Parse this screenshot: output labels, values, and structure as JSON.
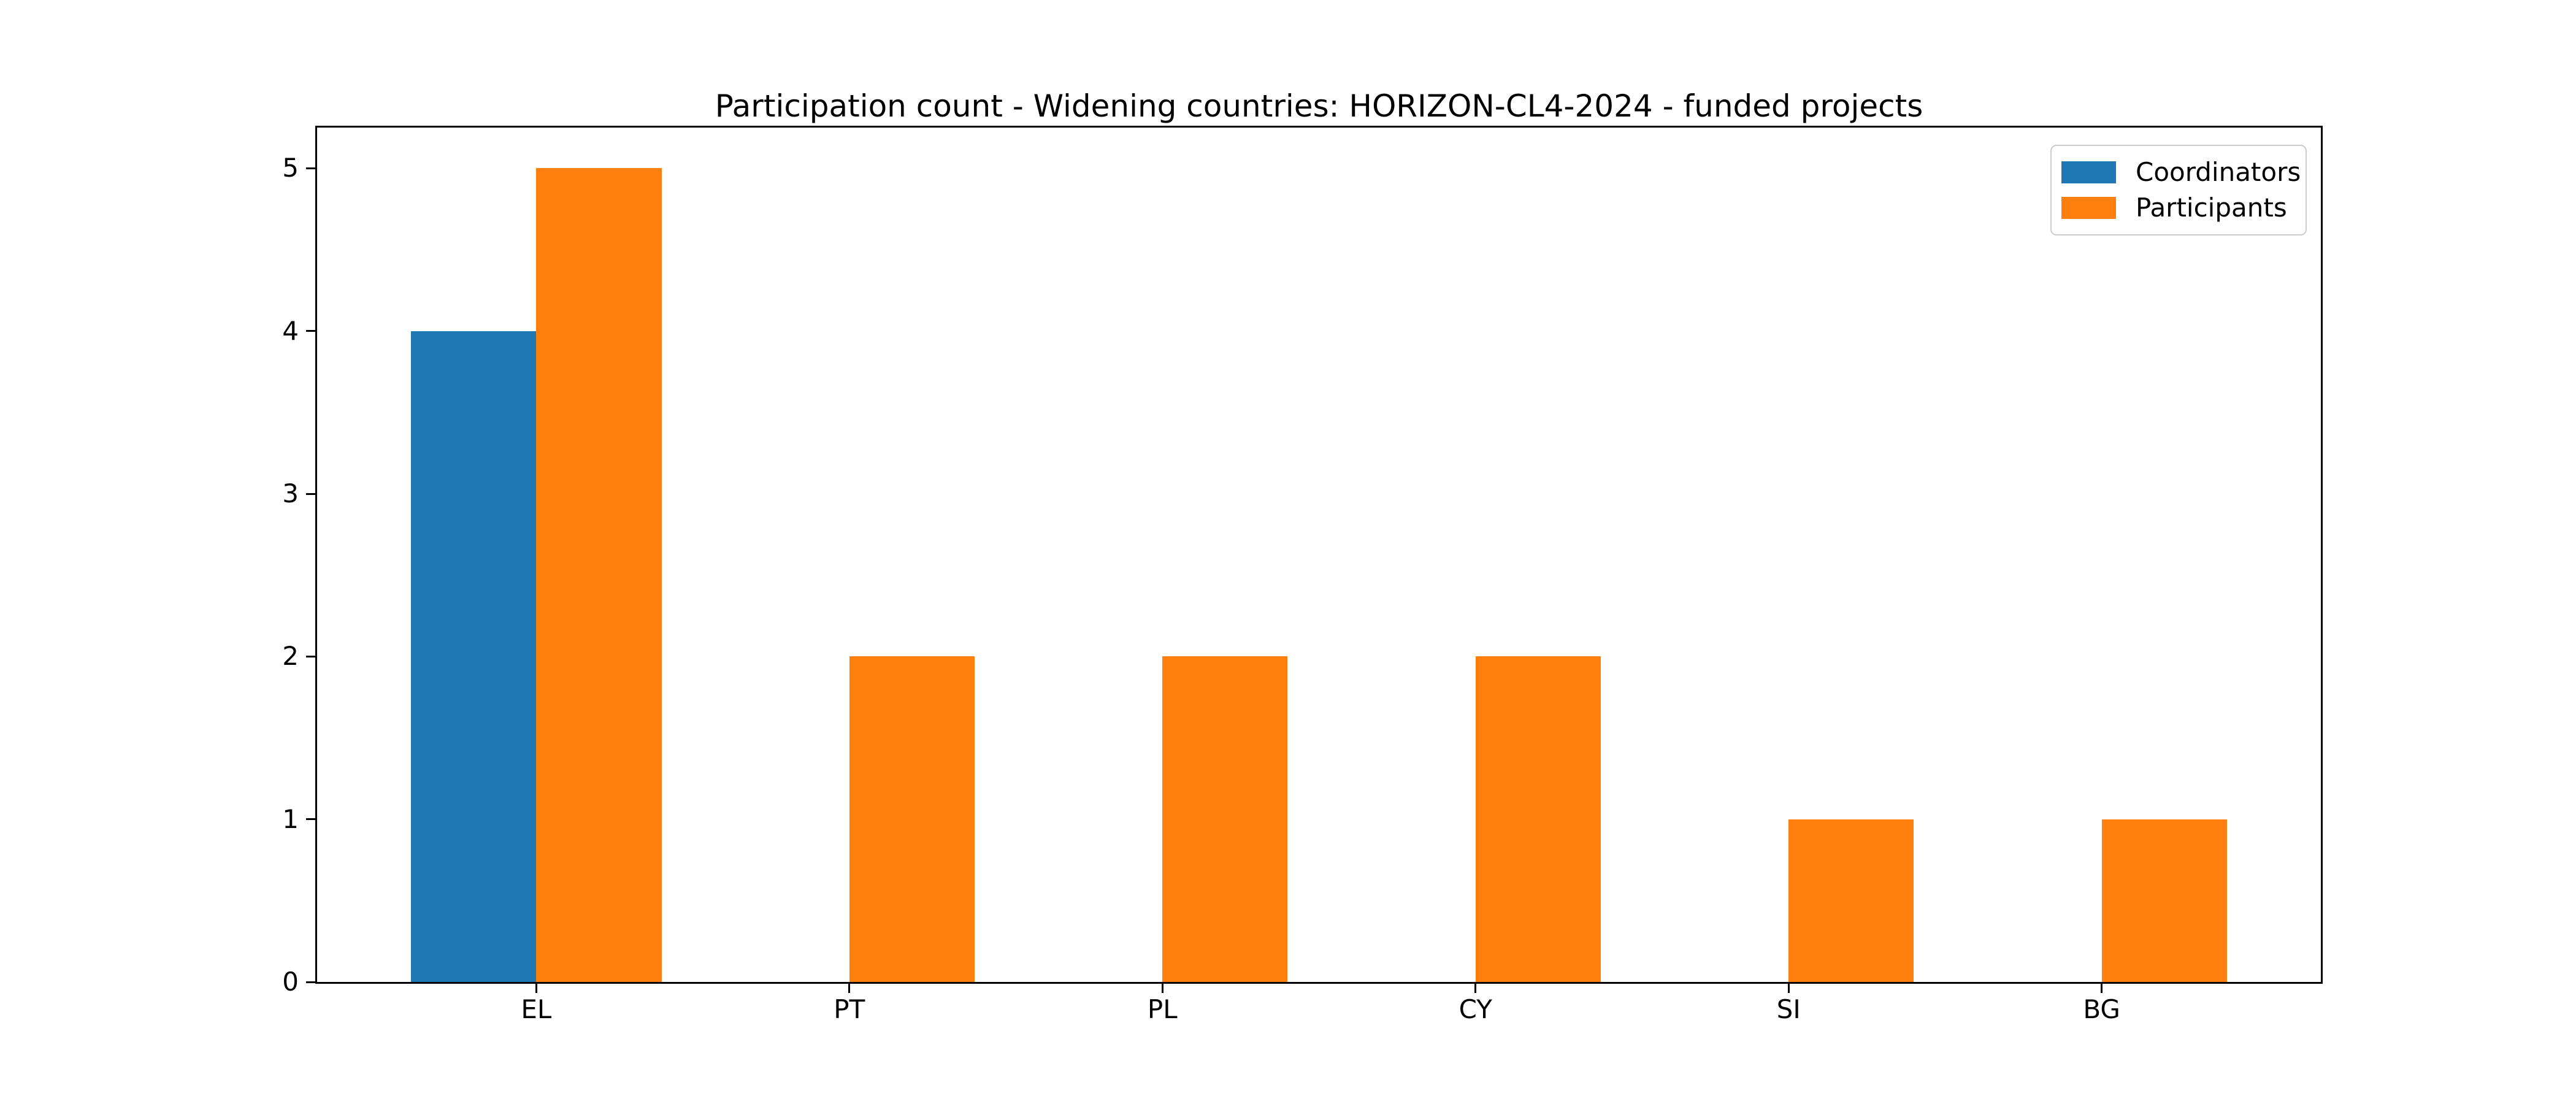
{
  "figure": {
    "background": "#ffffff"
  },
  "chart_data": {
    "type": "bar",
    "title": "Participation count - Widening countries: HORIZON-CL4-2024 - funded projects",
    "categories": [
      "EL",
      "PT",
      "PL",
      "CY",
      "SI",
      "BG"
    ],
    "series": [
      {
        "name": "Coordinators",
        "color": "#1f77b4",
        "values": [
          4,
          0,
          0,
          0,
          0,
          0
        ]
      },
      {
        "name": "Participants",
        "color": "#ff7f0e",
        "values": [
          5,
          2,
          2,
          2,
          1,
          1
        ]
      }
    ],
    "xlabel": "",
    "ylabel": "",
    "yticks": [
      0,
      1,
      2,
      3,
      4,
      5
    ],
    "ylim": [
      0,
      5.25
    ],
    "xlim": [
      -0.7,
      5.7
    ],
    "bar_width": 0.4,
    "grid": false,
    "legend_position": "upper right",
    "axis_color": "#000000",
    "legend_border_color": "#cccccc"
  }
}
